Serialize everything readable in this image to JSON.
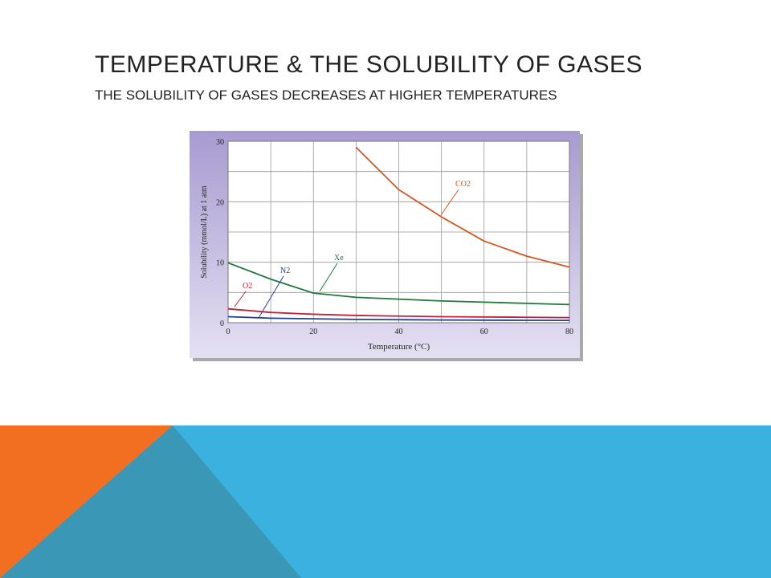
{
  "slide": {
    "title": "TEMPERATURE & THE SOLUBILITY OF GASES",
    "subtitle": "THE SOLUBILITY OF GASES DECREASES AT HIGHER TEMPERATURES"
  },
  "chart_data": {
    "type": "line",
    "x_label": "Temperature (°C)",
    "y_label": "Solubility (mmol/L) at 1 atm",
    "x": [
      0,
      10,
      20,
      30,
      40,
      50,
      60,
      70,
      80
    ],
    "series": [
      {
        "name": "CO2",
        "color": "#d4571e",
        "values": [
          null,
          null,
          null,
          29,
          22,
          17.5,
          13.5,
          11,
          9.2
        ]
      },
      {
        "name": "Xe",
        "color": "#1e7a3c",
        "values": [
          9.9,
          7.2,
          4.9,
          4.2,
          3.9,
          3.6,
          3.4,
          3.2,
          3.0
        ]
      },
      {
        "name": "N2",
        "color": "#1f3f9a",
        "values": [
          1.0,
          0.75,
          0.65,
          0.55,
          0.5,
          0.45,
          0.42,
          0.4,
          0.38
        ]
      },
      {
        "name": "O2",
        "color": "#c0203a",
        "values": [
          2.3,
          1.7,
          1.4,
          1.2,
          1.1,
          1.0,
          0.95,
          0.9,
          0.85
        ]
      }
    ],
    "xlim": [
      0,
      80
    ],
    "xticks": [
      0,
      20,
      40,
      60,
      80
    ],
    "ylim": [
      0,
      30
    ],
    "yticks": [
      0,
      10,
      20,
      30
    ],
    "grid": true
  }
}
